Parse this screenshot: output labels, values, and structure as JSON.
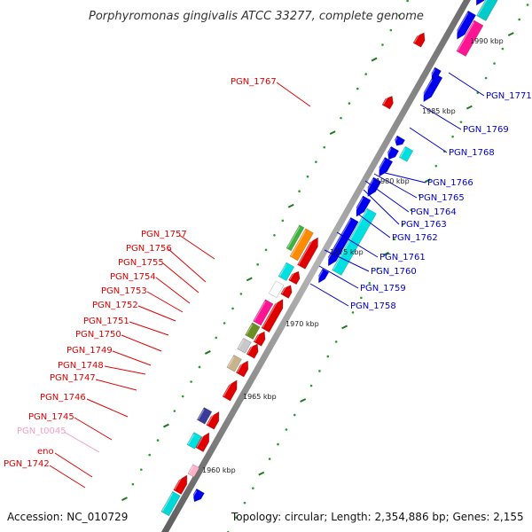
{
  "title": "Porphyromonas gingivalis ATCC 33277, complete genome",
  "footer": {
    "accession": "Accession: NC_010729",
    "topology": "Topology: circular; Length: 2,354,886 bp; Genes: 2,155"
  },
  "colors": {
    "backbone": "#8c8c8c",
    "red_label": "#e00000",
    "blue_label": "#0000cc",
    "pink_label": "#f4a0c8",
    "tick": "#1e7a1e",
    "dot": "#23a023"
  },
  "kbp_labels": [
    "1960 kbp",
    "1965 kbp",
    "1970 kbp",
    "1975 kbp",
    "1980 kbp",
    "1985 kbp",
    "1990 kbp"
  ],
  "genes_left": [
    {
      "name": "PGN_1767",
      "color": "#e00000"
    },
    {
      "name": "PGN_1757",
      "color": "#e00000"
    },
    {
      "name": "PGN_1756",
      "color": "#e00000"
    },
    {
      "name": "PGN_1755",
      "color": "#e00000"
    },
    {
      "name": "PGN_1754",
      "color": "#e00000"
    },
    {
      "name": "PGN_1753",
      "color": "#e00000"
    },
    {
      "name": "PGN_1752",
      "color": "#e00000"
    },
    {
      "name": "PGN_1751",
      "color": "#e00000"
    },
    {
      "name": "PGN_1750",
      "color": "#e00000"
    },
    {
      "name": "PGN_1749",
      "color": "#e00000"
    },
    {
      "name": "PGN_1748",
      "color": "#e00000"
    },
    {
      "name": "PGN_1747",
      "color": "#e00000"
    },
    {
      "name": "PGN_1746",
      "color": "#e00000"
    },
    {
      "name": "PGN_1745",
      "color": "#e00000"
    },
    {
      "name": "PGN_t0045",
      "color": "#f4a0c8"
    },
    {
      "name": "eno",
      "color": "#e00000"
    },
    {
      "name": "PGN_1742",
      "color": "#e00000"
    }
  ],
  "genes_right": [
    {
      "name": "PGN_1771",
      "color": "#0000cc"
    },
    {
      "name": "PGN_1769",
      "color": "#0000cc"
    },
    {
      "name": "PGN_1768",
      "color": "#0000cc"
    },
    {
      "name": "PGN_1766",
      "color": "#0000cc"
    },
    {
      "name": "PGN_1765",
      "color": "#0000cc"
    },
    {
      "name": "PGN_1764",
      "color": "#0000cc"
    },
    {
      "name": "PGN_1763",
      "color": "#0000cc"
    },
    {
      "name": "PGN_1762",
      "color": "#0000cc"
    },
    {
      "name": "PGN_1761",
      "color": "#0000cc"
    },
    {
      "name": "PGN_1760",
      "color": "#0000cc"
    },
    {
      "name": "PGN_1759",
      "color": "#0000cc"
    },
    {
      "name": "PGN_1758",
      "color": "#0000cc"
    }
  ]
}
